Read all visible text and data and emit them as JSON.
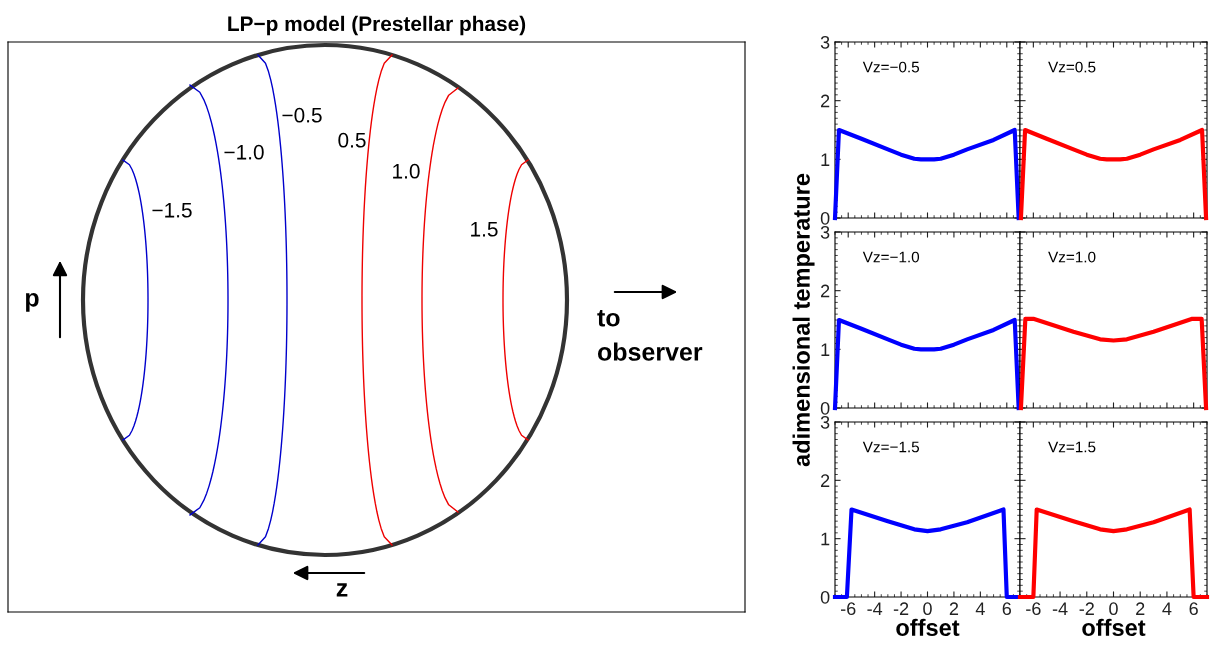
{
  "chart_data": [
    {
      "type": "other",
      "title": "LP−p model (Prestellar phase)",
      "annotations": [
        "−1.5",
        "−1.0",
        "−0.5",
        "0.5",
        "1.0",
        "1.5",
        "p",
        "z",
        "to\nobserver"
      ]
    },
    {
      "type": "line",
      "xlim": [
        -7,
        7
      ],
      "ylim": [
        0,
        3
      ],
      "xticks": [
        -6,
        -4,
        -2,
        0,
        2,
        4,
        6
      ],
      "yticks": [
        0,
        1,
        2,
        3
      ],
      "tick_labels": "y",
      "annotations": [
        "Vz=−0.5"
      ],
      "series": [
        {
          "color": "#0000ff",
          "x": [
            -7,
            -6.7,
            -5,
            -3,
            -2,
            -1,
            -0.5,
            0,
            0.5,
            1,
            2,
            3,
            5,
            6.6,
            6.9
          ],
          "values": [
            0,
            1.5,
            1.35,
            1.17,
            1.08,
            1.01,
            1.0,
            1.0,
            1.0,
            1.01,
            1.08,
            1.17,
            1.33,
            1.5,
            0
          ]
        }
      ]
    },
    {
      "type": "line",
      "xlim": [
        -7,
        7
      ],
      "ylim": [
        0,
        3
      ],
      "xticks": [
        -6,
        -4,
        -2,
        0,
        2,
        4,
        6
      ],
      "yticks": [
        0,
        1,
        2,
        3
      ],
      "tick_labels": false,
      "annotations": [
        "Vz=0.5"
      ],
      "series": [
        {
          "color": "#ff0000",
          "x": [
            -6.93,
            -6.62,
            -5,
            -3,
            -2,
            -1,
            -0.5,
            0,
            0.5,
            1,
            2,
            3,
            5,
            6.63,
            6.93
          ],
          "values": [
            0,
            1.5,
            1.35,
            1.17,
            1.08,
            1.01,
            1.0,
            1.0,
            1.0,
            1.01,
            1.08,
            1.17,
            1.33,
            1.5,
            0
          ]
        }
      ]
    },
    {
      "type": "line",
      "xlim": [
        -7,
        7
      ],
      "ylim": [
        0,
        3
      ],
      "xticks": [
        -6,
        -4,
        -2,
        0,
        2,
        4,
        6
      ],
      "yticks": [
        0,
        1,
        2,
        3
      ],
      "tick_labels": "y",
      "ylabel": "adimensional temperature",
      "annotations": [
        "Vz=−1.0"
      ],
      "series": [
        {
          "color": "#0000ff",
          "x": [
            -7,
            -6.7,
            -5,
            -3,
            -2,
            -1,
            -0.5,
            0,
            0.5,
            1,
            2,
            3,
            5,
            6.6,
            6.9
          ],
          "values": [
            0,
            1.5,
            1.35,
            1.17,
            1.08,
            1.01,
            1.0,
            1.0,
            1.0,
            1.01,
            1.08,
            1.17,
            1.33,
            1.5,
            0
          ]
        }
      ]
    },
    {
      "type": "line",
      "xlim": [
        -7,
        7
      ],
      "ylim": [
        0,
        3
      ],
      "xticks": [
        -6,
        -4,
        -2,
        0,
        2,
        4,
        6
      ],
      "yticks": [
        0,
        1,
        2,
        3
      ],
      "tick_labels": false,
      "annotations": [
        "Vz=1.0"
      ],
      "series": [
        {
          "color": "#ff0000",
          "x": [
            -6.93,
            -6.6,
            -6.0,
            -3,
            -1,
            0,
            1,
            3,
            5.9,
            6.6,
            6.93
          ],
          "values": [
            0,
            1.52,
            1.52,
            1.3,
            1.17,
            1.15,
            1.17,
            1.3,
            1.52,
            1.52,
            0
          ]
        }
      ]
    },
    {
      "type": "line",
      "xlim": [
        -7,
        7
      ],
      "ylim": [
        0,
        3
      ],
      "xticks": [
        -6,
        -4,
        -2,
        0,
        2,
        4,
        6
      ],
      "yticks": [
        0,
        1,
        2,
        3
      ],
      "xlabel": "offset",
      "annotations": [
        "Vz=−1.5"
      ],
      "series": [
        {
          "color": "#0000ff",
          "x": [
            -7,
            -6.1,
            -5.75,
            -3,
            -1,
            0,
            1,
            3,
            5.75,
            6.0,
            7
          ],
          "values": [
            0,
            0,
            1.5,
            1.3,
            1.16,
            1.13,
            1.16,
            1.28,
            1.5,
            0,
            0
          ]
        }
      ]
    },
    {
      "type": "line",
      "xlim": [
        -7,
        7
      ],
      "ylim": [
        0,
        3
      ],
      "xticks": [
        -6,
        -4,
        -2,
        0,
        2,
        4,
        6
      ],
      "yticks": [
        0,
        1,
        2,
        3
      ],
      "tick_labels": "x",
      "xlabel": "offset",
      "annotations": [
        "Vz=1.5"
      ],
      "series": [
        {
          "color": "#ff0000",
          "x": [
            -7,
            -6.0,
            -5.75,
            -3,
            -1,
            0,
            1,
            3,
            5.7,
            6.0,
            7
          ],
          "values": [
            0,
            0,
            1.5,
            1.3,
            1.16,
            1.13,
            1.16,
            1.28,
            1.5,
            0,
            0
          ]
        }
      ]
    }
  ]
}
